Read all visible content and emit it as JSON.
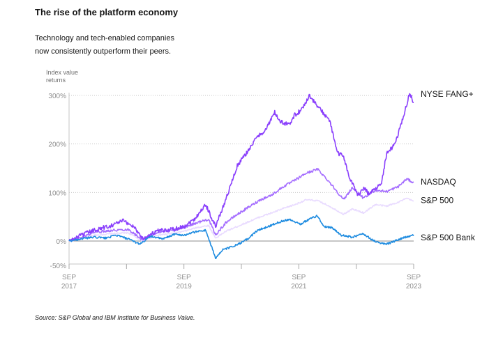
{
  "header": {
    "title": "The rise of the platform economy",
    "subtitle_line1": "Technology and tech-enabled companies",
    "subtitle_line2": "now consistently outperform their peers.",
    "axis_title_line1": "Index value",
    "axis_title_line2": "returns"
  },
  "footer": {
    "source": "Source: S&P Global and IBM Institute for Business Value."
  },
  "chart_data": {
    "type": "line",
    "title": "The rise of the platform economy",
    "ylabel": "Index value returns",
    "xlabel": "",
    "ylim": [
      -50,
      310
    ],
    "xlim": [
      2017.67,
      2023.67
    ],
    "y_ticks": [
      {
        "value": 300,
        "label": "300%"
      },
      {
        "value": 200,
        "label": "200%"
      },
      {
        "value": 100,
        "label": "100%"
      },
      {
        "value": 0,
        "label": "0%"
      },
      {
        "value": -50,
        "label": "-50%"
      }
    ],
    "x_ticks": [
      {
        "value": 2017.67,
        "month": "SEP",
        "year": "2017"
      },
      {
        "value": 2018.67,
        "month": "",
        "year": ""
      },
      {
        "value": 2019.67,
        "month": "SEP",
        "year": "2019"
      },
      {
        "value": 2020.67,
        "month": "",
        "year": ""
      },
      {
        "value": 2021.67,
        "month": "SEP",
        "year": "2021"
      },
      {
        "value": 2022.67,
        "month": "",
        "year": ""
      },
      {
        "value": 2023.67,
        "month": "SEP",
        "year": "2023"
      }
    ],
    "grid": true,
    "series": [
      {
        "name": "S&P 500",
        "color": "#e8daff",
        "x": [
          2017.67,
          2017.9,
          2018.1,
          2018.4,
          2018.7,
          2018.95,
          2019.2,
          2019.5,
          2019.67,
          2019.9,
          2020.1,
          2020.22,
          2020.4,
          2020.6,
          2020.8,
          2021.0,
          2021.2,
          2021.4,
          2021.6,
          2021.8,
          2022.0,
          2022.2,
          2022.45,
          2022.6,
          2022.8,
          2023.0,
          2023.2,
          2023.4,
          2023.55,
          2023.67
        ],
        "values": [
          0,
          6,
          12,
          15,
          17,
          0,
          12,
          16,
          20,
          28,
          32,
          6,
          20,
          30,
          40,
          50,
          58,
          67,
          75,
          85,
          83,
          72,
          55,
          66,
          58,
          75,
          72,
          80,
          88,
          82
        ]
      },
      {
        "name": "NASDAQ",
        "color": "#a56eff",
        "x": [
          2017.67,
          2017.9,
          2018.1,
          2018.4,
          2018.7,
          2018.95,
          2019.2,
          2019.5,
          2019.67,
          2019.9,
          2020.1,
          2020.22,
          2020.4,
          2020.6,
          2020.8,
          2021.0,
          2021.2,
          2021.4,
          2021.6,
          2021.8,
          2022.0,
          2022.2,
          2022.45,
          2022.6,
          2022.8,
          2023.0,
          2023.2,
          2023.4,
          2023.55,
          2023.67
        ],
        "values": [
          0,
          8,
          18,
          22,
          24,
          2,
          18,
          22,
          28,
          38,
          45,
          12,
          38,
          55,
          70,
          85,
          95,
          112,
          125,
          140,
          148,
          122,
          85,
          110,
          88,
          105,
          102,
          112,
          128,
          120
        ]
      },
      {
        "name": "NYSE FANG+",
        "color": "#8a3ffc",
        "x": [
          2017.67,
          2017.85,
          2018.1,
          2018.4,
          2018.6,
          2018.8,
          2018.95,
          2019.2,
          2019.5,
          2019.67,
          2019.85,
          2020.05,
          2020.22,
          2020.35,
          2020.5,
          2020.6,
          2020.75,
          2020.95,
          2021.1,
          2021.25,
          2021.35,
          2021.5,
          2021.6,
          2021.72,
          2021.85,
          2021.95,
          2022.05,
          2022.2,
          2022.35,
          2022.45,
          2022.55,
          2022.7,
          2022.8,
          2022.9,
          2023.0,
          2023.1,
          2023.2,
          2023.35,
          2023.5,
          2023.6,
          2023.67
        ],
        "values": [
          0,
          10,
          22,
          32,
          42,
          30,
          5,
          20,
          25,
          30,
          45,
          75,
          30,
          70,
          120,
          155,
          180,
          215,
          230,
          265,
          245,
          240,
          260,
          270,
          300,
          285,
          270,
          250,
          180,
          175,
          130,
          95,
          110,
          95,
          110,
          115,
          180,
          200,
          260,
          305,
          285
        ]
      },
      {
        "name": "S&P 500 Bank",
        "color": "#1f8ce0",
        "x": [
          2017.67,
          2017.9,
          2018.1,
          2018.3,
          2018.5,
          2018.7,
          2018.9,
          2019.1,
          2019.3,
          2019.5,
          2019.67,
          2019.9,
          2020.05,
          2020.22,
          2020.35,
          2020.5,
          2020.65,
          2020.8,
          2020.95,
          2021.1,
          2021.3,
          2021.5,
          2021.7,
          2021.9,
          2022.0,
          2022.1,
          2022.25,
          2022.4,
          2022.6,
          2022.8,
          2022.95,
          2023.1,
          2023.2,
          2023.3,
          2023.45,
          2023.6,
          2023.67
        ],
        "values": [
          0,
          5,
          8,
          6,
          12,
          4,
          -6,
          10,
          4,
          14,
          12,
          20,
          22,
          -35,
          -18,
          -12,
          -5,
          6,
          22,
          28,
          38,
          45,
          35,
          48,
          52,
          30,
          28,
          12,
          8,
          15,
          2,
          -5,
          -6,
          -2,
          5,
          10,
          12
        ]
      }
    ],
    "series_labels": [
      {
        "series": "NYSE FANG+",
        "text": "NYSE FANG+",
        "anchor_value": 303
      },
      {
        "series": "NASDAQ",
        "text": "NASDAQ",
        "anchor_value": 122
      },
      {
        "series": "S&P 500",
        "text": "S&P 500",
        "anchor_value": 84
      },
      {
        "series": "S&P 500 Bank",
        "text": "S&P 500 Bank",
        "anchor_value": 7
      }
    ]
  }
}
